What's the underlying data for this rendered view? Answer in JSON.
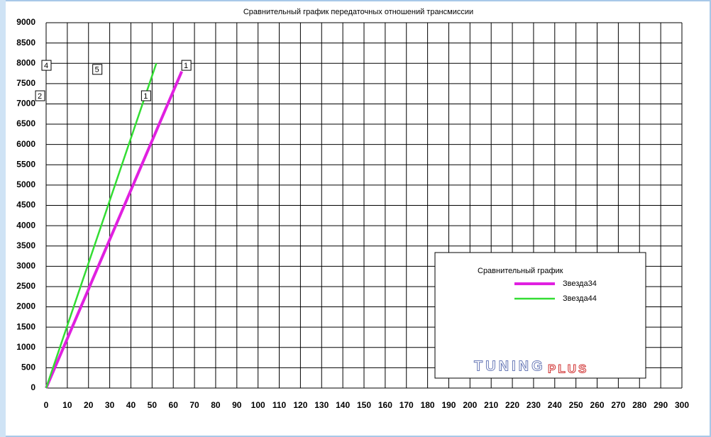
{
  "chart_data": {
    "type": "line",
    "title": "Сравнительный график передаточных отношений трансмиссии",
    "legend_title": "Сравнительный график",
    "series": [
      {
        "name": "Звезда34",
        "color": "#e020e0",
        "x": [
          0,
          64
        ],
        "values": [
          0,
          7800
        ]
      },
      {
        "name": "Звезда44",
        "color": "#33dd33",
        "x": [
          0,
          52
        ],
        "values": [
          0,
          8000
        ]
      }
    ],
    "annotations": [
      {
        "text": "1",
        "x": 66,
        "y": 7950
      },
      {
        "text": "1",
        "x": 47,
        "y": 7200
      },
      {
        "text": "4",
        "x": 0,
        "y": 7950
      },
      {
        "text": "5",
        "x": 24,
        "y": 7850
      },
      {
        "text": "2",
        "x": -3,
        "y": 7200
      }
    ],
    "watermark": {
      "left": "TUNING",
      "right": "PLUS"
    },
    "xlim": [
      0,
      300
    ],
    "xticks": [
      0,
      10,
      20,
      30,
      40,
      50,
      60,
      70,
      80,
      90,
      100,
      110,
      120,
      130,
      140,
      150,
      160,
      170,
      180,
      190,
      200,
      210,
      220,
      230,
      240,
      250,
      260,
      270,
      280,
      290,
      300
    ],
    "ylim": [
      0,
      9000
    ],
    "yticks": [
      0,
      500,
      1000,
      1500,
      2000,
      2500,
      3000,
      3500,
      4000,
      4500,
      5000,
      5500,
      6000,
      6500,
      7000,
      7500,
      8000,
      8500,
      9000
    ],
    "grid": true
  }
}
